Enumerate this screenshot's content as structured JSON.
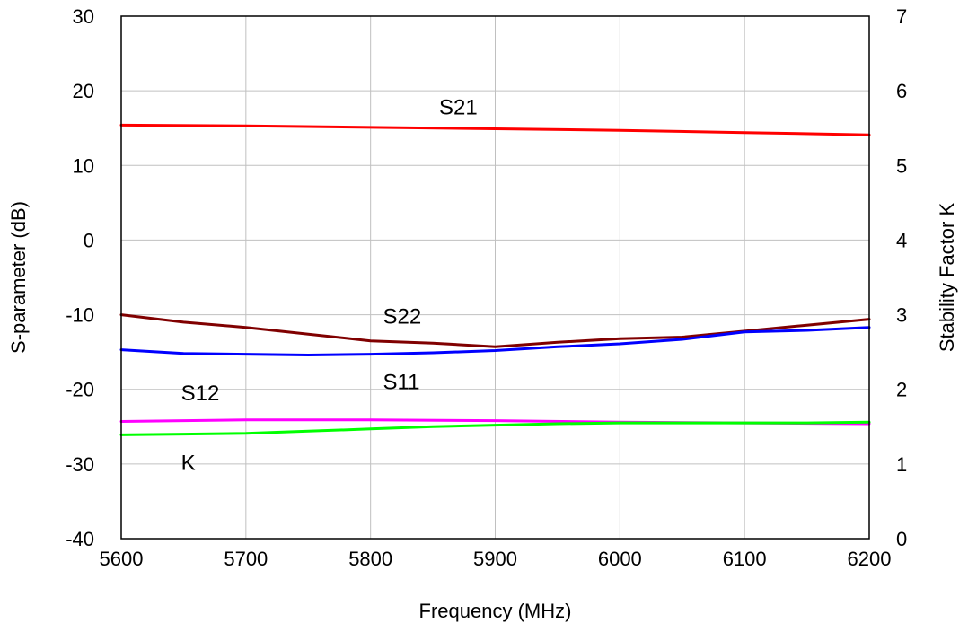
{
  "chart_data": {
    "type": "line",
    "xlabel": "Frequency (MHz)",
    "ylabel": "S-parameter (dB)",
    "y2label": "Stability Factor K",
    "xlim": [
      5600,
      6200
    ],
    "ylim": [
      -40,
      30
    ],
    "y2lim": [
      0,
      7
    ],
    "xticks": [
      5600,
      5700,
      5800,
      5900,
      6000,
      6100,
      6200
    ],
    "yticks": [
      -40,
      -30,
      -20,
      -10,
      0,
      10,
      20,
      30
    ],
    "y2ticks": [
      0,
      1,
      2,
      3,
      4,
      5,
      6,
      7
    ],
    "grid": true,
    "series": [
      {
        "name": "S21",
        "axis": "left",
        "color": "#ff0000",
        "x": [
          5600,
          5700,
          5800,
          5900,
          6000,
          6100,
          6200
        ],
        "y": [
          15.4,
          15.3,
          15.1,
          14.9,
          14.7,
          14.4,
          14.1
        ]
      },
      {
        "name": "S22",
        "axis": "left",
        "color": "#800000",
        "x": [
          5600,
          5650,
          5700,
          5750,
          5800,
          5850,
          5900,
          5950,
          6000,
          6050,
          6100,
          6150,
          6200
        ],
        "y": [
          -10.0,
          -11.0,
          -11.7,
          -12.6,
          -13.5,
          -13.8,
          -14.3,
          -13.7,
          -13.2,
          -13.0,
          -12.2,
          -11.4,
          -10.6
        ]
      },
      {
        "name": "S11",
        "axis": "left",
        "color": "#0000ff",
        "x": [
          5600,
          5650,
          5700,
          5750,
          5800,
          5850,
          5900,
          5950,
          6000,
          6050,
          6100,
          6150,
          6200
        ],
        "y": [
          -14.7,
          -15.2,
          -15.3,
          -15.4,
          -15.3,
          -15.1,
          -14.8,
          -14.3,
          -13.9,
          -13.3,
          -12.3,
          -12.1,
          -11.7
        ]
      },
      {
        "name": "S12",
        "axis": "left",
        "color": "#ff00ff",
        "x": [
          5600,
          5700,
          5800,
          5900,
          6000,
          6100,
          6200
        ],
        "y": [
          -24.3,
          -24.1,
          -24.1,
          -24.2,
          -24.4,
          -24.5,
          -24.6
        ]
      },
      {
        "name": "K",
        "axis": "right",
        "color": "#00ff00",
        "x": [
          5600,
          5650,
          5700,
          5750,
          5800,
          5850,
          5900,
          5950,
          6000,
          6050,
          6100,
          6150,
          6200
        ],
        "y": [
          1.39,
          1.4,
          1.41,
          1.44,
          1.47,
          1.5,
          1.52,
          1.54,
          1.55,
          1.55,
          1.55,
          1.55,
          1.56
        ]
      }
    ],
    "annotations": [
      {
        "text": "S21",
        "x": 5855,
        "y": 16.8
      },
      {
        "text": "S22",
        "x": 5810,
        "y": -11.2
      },
      {
        "text": "S11",
        "x": 5810,
        "y": -20.0
      },
      {
        "text": "S12",
        "x": 5648,
        "y": -21.5
      },
      {
        "text": "K",
        "x": 5648,
        "y": -30.8
      }
    ]
  }
}
